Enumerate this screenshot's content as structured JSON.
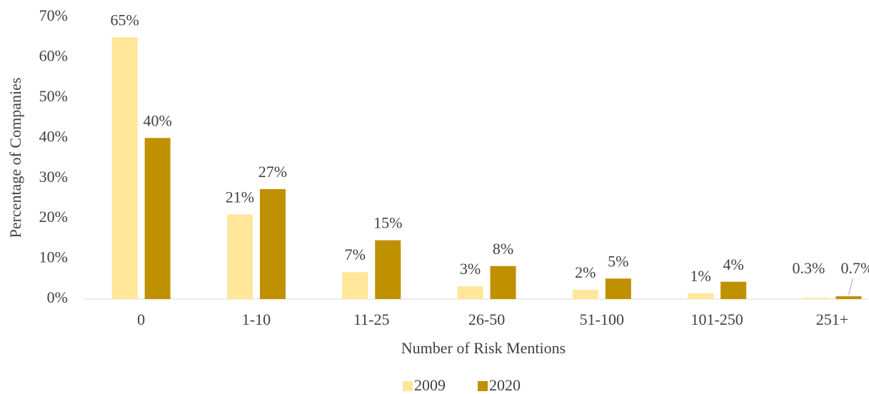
{
  "chart_data": {
    "type": "bar",
    "x_label": "Number of Risk Mentions",
    "y_label": "Percentage of Companies",
    "categories": [
      "0",
      "1-10",
      "11-25",
      "26-50",
      "51-100",
      "101-250",
      "251+"
    ],
    "series": [
      {
        "name": "2009",
        "color": "#FFE699",
        "values": [
          65,
          21,
          6.7,
          3.2,
          2.3,
          1.4,
          0.3
        ],
        "value_labels": [
          "65%",
          "21%",
          "7%",
          "3%",
          "2%",
          "1%",
          "0.3%"
        ]
      },
      {
        "name": "2020",
        "color": "#BF9000",
        "values": [
          40,
          27.3,
          14.6,
          8.2,
          5.1,
          4.3,
          0.7
        ],
        "value_labels": [
          "40%",
          "27%",
          "15%",
          "8%",
          "5%",
          "4%",
          "0.7%"
        ]
      }
    ],
    "ylim": [
      0,
      70
    ],
    "yticks": [
      {
        "value": 0,
        "label": "0%"
      },
      {
        "value": 10,
        "label": "10%"
      },
      {
        "value": 20,
        "label": "20%"
      },
      {
        "value": 30,
        "label": "30%"
      },
      {
        "value": 40,
        "label": "40%"
      },
      {
        "value": 50,
        "label": "50%"
      },
      {
        "value": 60,
        "label": "60%"
      },
      {
        "value": 70,
        "label": "70%"
      }
    ],
    "grid": false,
    "legend": "bottom"
  }
}
